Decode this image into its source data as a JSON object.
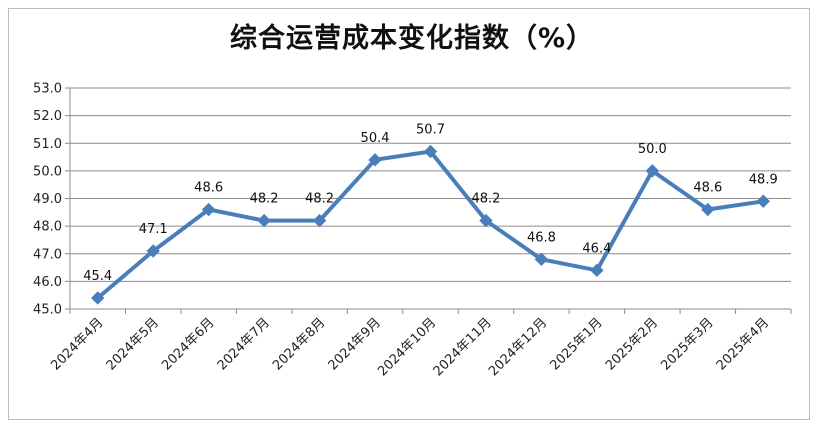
{
  "chart_data": {
    "type": "line",
    "title": "综合运营成本变化指数（%）",
    "categories": [
      "2024年4月",
      "2024年5月",
      "2024年6月",
      "2024年7月",
      "2024年8月",
      "2024年9月",
      "2024年10月",
      "2024年11月",
      "2024年12月",
      "2025年1月",
      "2025年2月",
      "2025年3月",
      "2025年4月"
    ],
    "values": [
      45.4,
      47.1,
      48.6,
      48.2,
      48.2,
      50.4,
      50.7,
      48.2,
      46.8,
      46.4,
      50.0,
      48.6,
      48.9
    ],
    "data_labels": [
      "45.4",
      "47.1",
      "48.6",
      "48.2",
      "48.2",
      "50.4",
      "50.7",
      "48.2",
      "46.8",
      "46.4",
      "50.0",
      "48.6",
      "48.9"
    ],
    "yticks": [
      "45.0",
      "46.0",
      "47.0",
      "48.0",
      "49.0",
      "50.0",
      "51.0",
      "52.0",
      "53.0"
    ],
    "ylim": [
      45.0,
      53.0
    ],
    "grid": true,
    "legend": "none",
    "line_color": "#4a7ebb",
    "marker": "diamond"
  }
}
